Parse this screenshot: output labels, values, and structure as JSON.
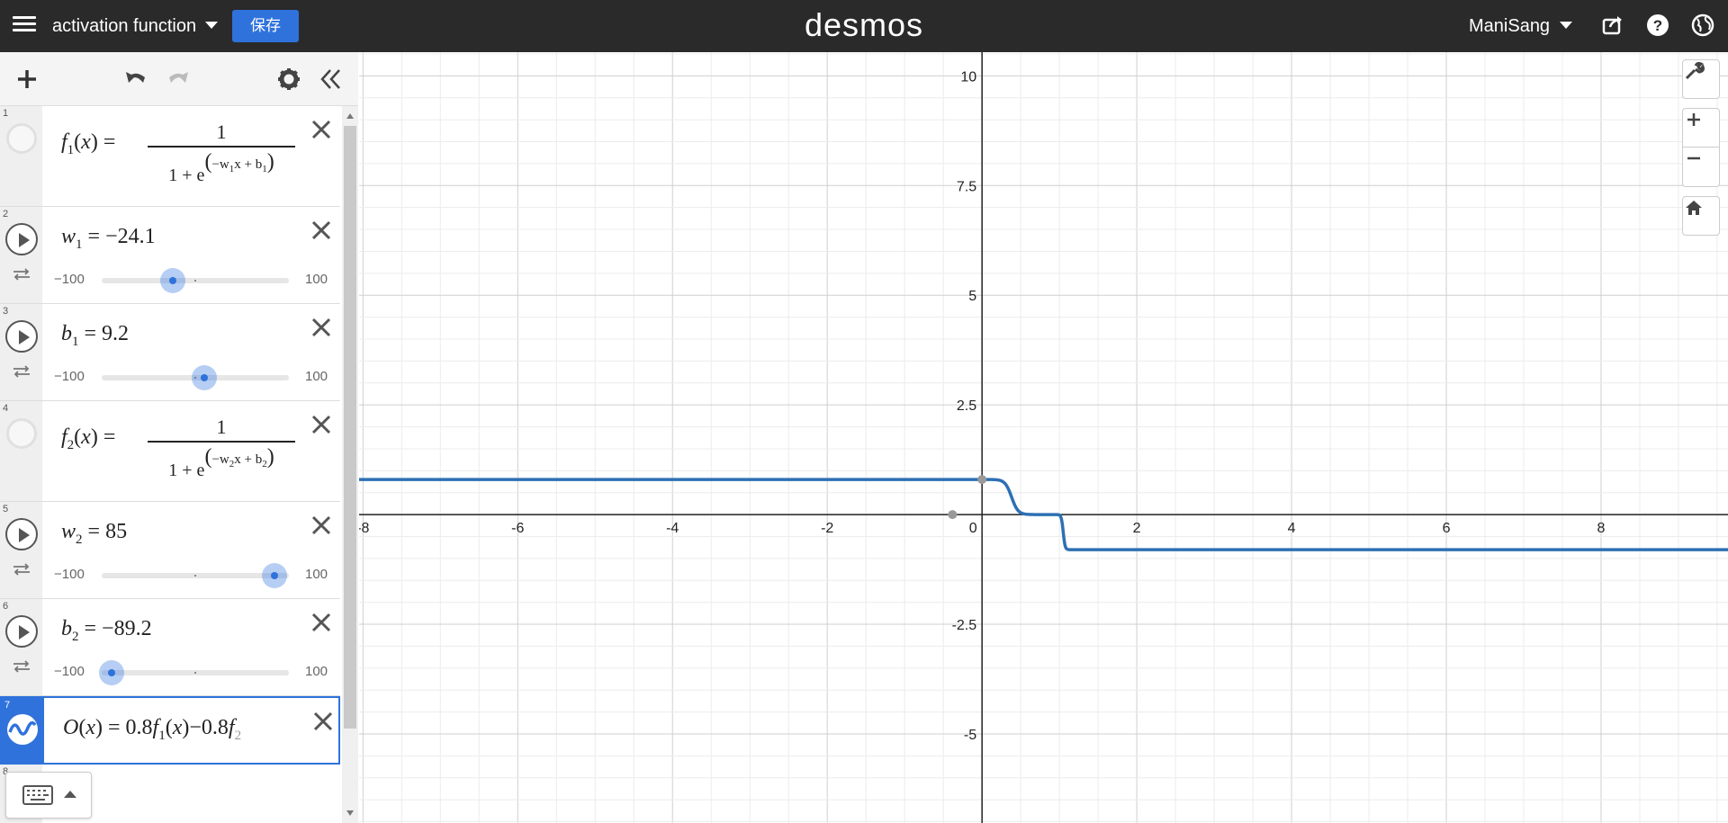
{
  "header": {
    "graph_title": "activation function",
    "save_label": "保存",
    "logo": "desmos",
    "user_name": "ManiSang"
  },
  "expressions": [
    {
      "index": "1",
      "type": "function",
      "fname": "f",
      "fsub": "1",
      "numerator": "1",
      "denominator": "1 + e",
      "exponent": "−w",
      "exp_sub1": "1",
      "exp_mid": "x + b",
      "exp_sub2": "1"
    },
    {
      "index": "2",
      "type": "slider",
      "var": "w",
      "sub": "1",
      "value": "−24.1",
      "min": "−100",
      "max": "100",
      "fraction": 0.3795
    },
    {
      "index": "3",
      "type": "slider",
      "var": "b",
      "sub": "1",
      "value": "9.2",
      "min": "−100",
      "max": "100",
      "fraction": 0.546
    },
    {
      "index": "4",
      "type": "function",
      "fname": "f",
      "fsub": "2",
      "numerator": "1",
      "denominator": "1 + e",
      "exponent": "−w",
      "exp_sub1": "2",
      "exp_mid": "x + b",
      "exp_sub2": "2"
    },
    {
      "index": "5",
      "type": "slider",
      "var": "w",
      "sub": "2",
      "value": "85",
      "min": "−100",
      "max": "100",
      "fraction": 0.925
    },
    {
      "index": "6",
      "type": "slider",
      "var": "b",
      "sub": "2",
      "value": "−89.2",
      "min": "−100",
      "max": "100",
      "fraction": 0.054
    },
    {
      "index": "7",
      "type": "output",
      "lhs": "O",
      "rhs_a": "0.8",
      "rhs_b": "f",
      "rhs_b_sub": "1",
      "rhs_c": "−0.8",
      "rhs_d": "f",
      "rhs_d_sub": "2"
    },
    {
      "index": "8",
      "type": "empty"
    }
  ],
  "graph": {
    "x_ticks": [
      "-8",
      "-6",
      "-4",
      "-2",
      "0",
      "2",
      "4",
      "6",
      "8"
    ],
    "y_ticks": [
      "10",
      "7.5",
      "5",
      "2.5",
      "-2.5",
      "-5"
    ],
    "curve_color": "#2d70b3",
    "xlim": [
      -8.05,
      9.64
    ],
    "ylim": [
      -7.03,
      10.54
    ],
    "curve_levels": {
      "left": 0.8,
      "middle": 0,
      "right": -0.8
    }
  }
}
